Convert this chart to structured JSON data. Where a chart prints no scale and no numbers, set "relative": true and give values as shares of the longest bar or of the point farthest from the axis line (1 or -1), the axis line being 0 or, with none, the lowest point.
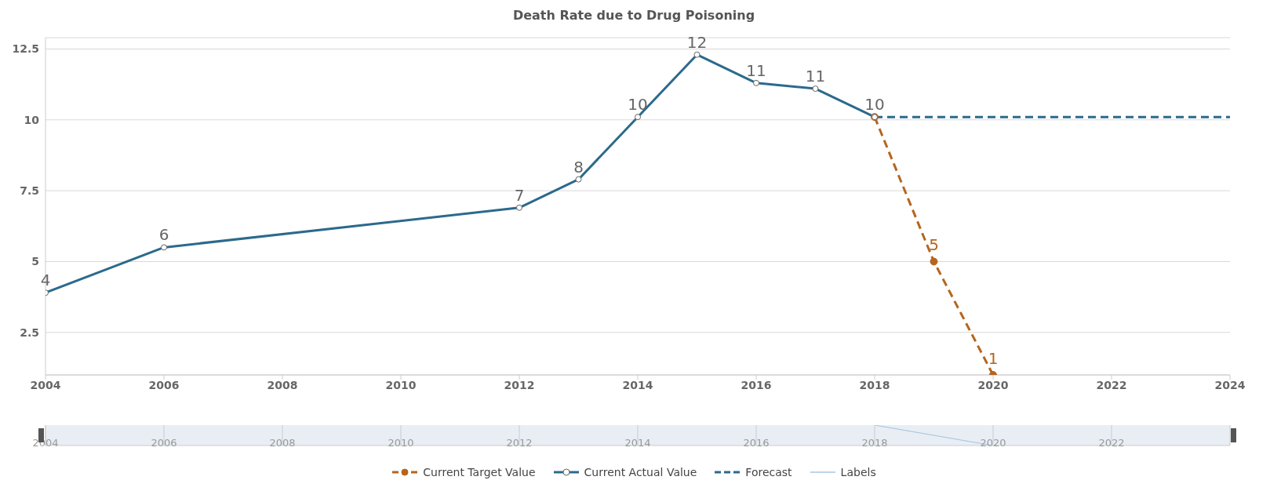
{
  "chart_data": [
    {
      "type": "line",
      "title": "Death Rate due to Drug Poisoning",
      "xlim": [
        2004,
        2024
      ],
      "xticks": [
        2004,
        2006,
        2008,
        2010,
        2012,
        2014,
        2016,
        2018,
        2020,
        2022,
        2024
      ],
      "ylim": [
        1,
        12.9
      ],
      "yticks": [
        2.5,
        5,
        7.5,
        10,
        12.5
      ],
      "grid": "y",
      "legend": "bottom",
      "series": [
        {
          "name": "Current Target Value",
          "color": "#b5651d",
          "line_style": "dashed",
          "marker": "circle",
          "x": [
            2018,
            2019,
            2020
          ],
          "values": [
            10.1,
            5.0,
            1.0
          ],
          "value_labels": [
            null,
            "5",
            "1"
          ]
        },
        {
          "name": "Current Actual Value",
          "color": "#2b6a8c",
          "line_style": "solid",
          "marker": "circle",
          "x": [
            2004,
            2006,
            2012,
            2013,
            2014,
            2015,
            2016,
            2017,
            2018
          ],
          "values": [
            3.9,
            5.5,
            6.9,
            7.9,
            10.1,
            12.3,
            11.3,
            11.1,
            10.1
          ],
          "value_labels": [
            "4",
            "6",
            "7",
            "8",
            "10",
            "12",
            "11",
            "11",
            "10"
          ]
        },
        {
          "name": "Forecast",
          "color": "#2b6a8c",
          "line_style": "dashed",
          "marker": "none",
          "x": [
            2018,
            2024
          ],
          "values": [
            10.1,
            10.1
          ]
        }
      ]
    },
    {
      "type": "line",
      "xlim": [
        2004,
        2024
      ],
      "xticks": [
        2004,
        2006,
        2008,
        2010,
        2012,
        2014,
        2016,
        2018,
        2020,
        2022
      ],
      "relative": true,
      "tick_labels": "x",
      "grid": "x",
      "series": [
        {
          "name": "Labels",
          "color": "#a9c6e2",
          "line_style": "solid",
          "marker": "none",
          "x": [
            2018,
            2020
          ],
          "values": [
            1,
            0
          ]
        }
      ]
    }
  ]
}
